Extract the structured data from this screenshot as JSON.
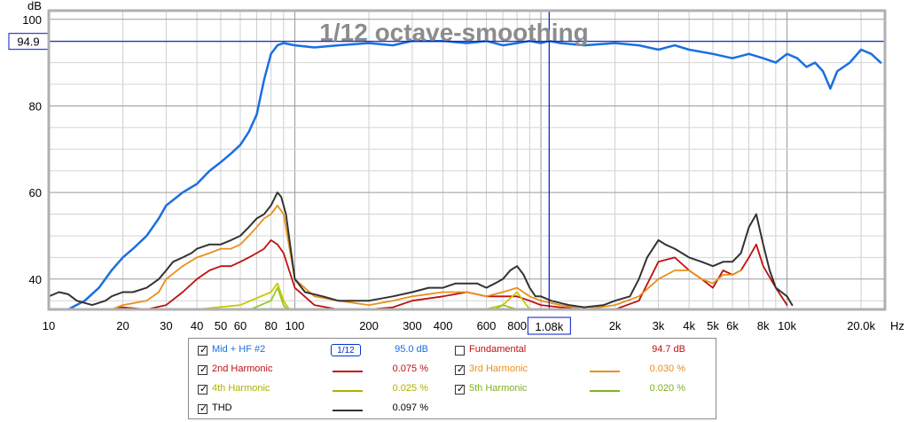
{
  "chart_data": {
    "type": "line",
    "title": "1/12 octave-smoothing",
    "ylabel": "dB",
    "xlabel": "Hz",
    "x_scale": "log",
    "xlim": [
      10,
      25000
    ],
    "ylim": [
      33,
      102
    ],
    "y_ticks": [
      40,
      60,
      80,
      100
    ],
    "x_ticks": [
      {
        "v": 10,
        "label": "10"
      },
      {
        "v": 20,
        "label": "20"
      },
      {
        "v": 30,
        "label": "30"
      },
      {
        "v": 40,
        "label": "40"
      },
      {
        "v": 50,
        "label": "50"
      },
      {
        "v": 60,
        "label": "60"
      },
      {
        "v": 80,
        "label": "80"
      },
      {
        "v": 100,
        "label": "100"
      },
      {
        "v": 200,
        "label": "200"
      },
      {
        "v": 300,
        "label": "300"
      },
      {
        "v": 400,
        "label": "400"
      },
      {
        "v": 600,
        "label": "600"
      },
      {
        "v": 800,
        "label": "800"
      },
      {
        "v": 2000,
        "label": "2k"
      },
      {
        "v": 3000,
        "label": "3k"
      },
      {
        "v": 4000,
        "label": "4k"
      },
      {
        "v": 5000,
        "label": "5k"
      },
      {
        "v": 6000,
        "label": "6k"
      },
      {
        "v": 8000,
        "label": "8k"
      },
      {
        "v": 10000,
        "label": "10k"
      },
      {
        "v": 20000,
        "label": "20.0k"
      }
    ],
    "cursor": {
      "x": 1080,
      "x_label": "1.08k",
      "y": 94.9,
      "y_label": "94.9"
    },
    "grid": true,
    "series": [
      {
        "name": "Mid + HF #2",
        "color": "#1a6fe0",
        "width": 2.5,
        "points": [
          [
            12,
            33
          ],
          [
            14,
            35
          ],
          [
            16,
            38
          ],
          [
            18,
            42
          ],
          [
            20,
            45
          ],
          [
            22,
            47
          ],
          [
            25,
            50
          ],
          [
            28,
            54
          ],
          [
            30,
            57
          ],
          [
            35,
            60
          ],
          [
            40,
            62
          ],
          [
            45,
            65
          ],
          [
            50,
            67
          ],
          [
            55,
            69
          ],
          [
            60,
            71
          ],
          [
            65,
            74
          ],
          [
            70,
            78
          ],
          [
            75,
            86
          ],
          [
            80,
            92
          ],
          [
            85,
            94
          ],
          [
            90,
            94.5
          ],
          [
            100,
            94
          ],
          [
            120,
            93.5
          ],
          [
            150,
            94
          ],
          [
            200,
            94.5
          ],
          [
            250,
            94
          ],
          [
            300,
            95
          ],
          [
            400,
            95
          ],
          [
            500,
            94.5
          ],
          [
            600,
            95
          ],
          [
            700,
            94
          ],
          [
            800,
            94.5
          ],
          [
            900,
            95
          ],
          [
            1000,
            94.5
          ],
          [
            1080,
            95
          ],
          [
            1200,
            94.5
          ],
          [
            1500,
            94
          ],
          [
            2000,
            94.5
          ],
          [
            2500,
            94
          ],
          [
            3000,
            93
          ],
          [
            3500,
            94
          ],
          [
            4000,
            93
          ],
          [
            5000,
            92
          ],
          [
            6000,
            91
          ],
          [
            7000,
            92
          ],
          [
            8000,
            91
          ],
          [
            9000,
            90
          ],
          [
            10000,
            92
          ],
          [
            11000,
            91
          ],
          [
            12000,
            89
          ],
          [
            13000,
            90
          ],
          [
            14000,
            88
          ],
          [
            15000,
            84
          ],
          [
            16000,
            88
          ],
          [
            18000,
            90
          ],
          [
            20000,
            93
          ],
          [
            22000,
            92
          ],
          [
            24000,
            90
          ]
        ]
      },
      {
        "name": "2nd Harmonic",
        "color": "#bf1010",
        "width": 1.8,
        "points": [
          [
            12,
            31
          ],
          [
            15,
            33
          ],
          [
            18,
            33
          ],
          [
            20,
            33.5
          ],
          [
            25,
            33
          ],
          [
            30,
            34
          ],
          [
            35,
            37
          ],
          [
            40,
            40
          ],
          [
            45,
            42
          ],
          [
            50,
            43
          ],
          [
            55,
            43
          ],
          [
            60,
            44
          ],
          [
            65,
            45
          ],
          [
            70,
            46
          ],
          [
            75,
            47
          ],
          [
            80,
            49
          ],
          [
            85,
            48
          ],
          [
            90,
            46
          ],
          [
            100,
            38
          ],
          [
            120,
            34
          ],
          [
            150,
            33
          ],
          [
            200,
            33
          ],
          [
            250,
            33.5
          ],
          [
            300,
            35
          ],
          [
            400,
            36
          ],
          [
            500,
            37
          ],
          [
            600,
            36
          ],
          [
            700,
            36
          ],
          [
            800,
            36
          ],
          [
            900,
            35
          ],
          [
            1000,
            34
          ],
          [
            1200,
            33.5
          ],
          [
            1500,
            33
          ],
          [
            2000,
            33
          ],
          [
            2500,
            35
          ],
          [
            3000,
            44
          ],
          [
            3500,
            45
          ],
          [
            4000,
            42
          ],
          [
            4500,
            40
          ],
          [
            5000,
            38
          ],
          [
            5500,
            42
          ],
          [
            6000,
            41
          ],
          [
            6500,
            42
          ],
          [
            7000,
            45
          ],
          [
            7500,
            48
          ],
          [
            8000,
            43
          ],
          [
            9000,
            38
          ],
          [
            10000,
            34
          ]
        ]
      },
      {
        "name": "3rd Harmonic",
        "color": "#e8901a",
        "width": 1.8,
        "points": [
          [
            12,
            31
          ],
          [
            15,
            32
          ],
          [
            18,
            33
          ],
          [
            20,
            34
          ],
          [
            25,
            35
          ],
          [
            28,
            37
          ],
          [
            30,
            40
          ],
          [
            35,
            43
          ],
          [
            40,
            45
          ],
          [
            45,
            46
          ],
          [
            50,
            47
          ],
          [
            55,
            47
          ],
          [
            60,
            48
          ],
          [
            65,
            50
          ],
          [
            70,
            52
          ],
          [
            75,
            54
          ],
          [
            80,
            55
          ],
          [
            85,
            57
          ],
          [
            90,
            55
          ],
          [
            100,
            40
          ],
          [
            120,
            36
          ],
          [
            150,
            35
          ],
          [
            200,
            34
          ],
          [
            250,
            35
          ],
          [
            300,
            36
          ],
          [
            400,
            37
          ],
          [
            500,
            37
          ],
          [
            600,
            36
          ],
          [
            700,
            37
          ],
          [
            800,
            38
          ],
          [
            900,
            36
          ],
          [
            1000,
            35
          ],
          [
            1200,
            34
          ],
          [
            1500,
            33
          ],
          [
            2000,
            34
          ],
          [
            2500,
            36
          ],
          [
            3000,
            40
          ],
          [
            3500,
            42
          ],
          [
            4000,
            42
          ],
          [
            4500,
            40
          ],
          [
            5000,
            39
          ],
          [
            5500,
            41
          ],
          [
            6000,
            41
          ],
          [
            6500,
            42
          ]
        ]
      },
      {
        "name": "4th Harmonic",
        "color": "#c8c800",
        "width": 1.8,
        "points": [
          [
            10,
            33
          ],
          [
            12,
            32
          ],
          [
            15,
            31
          ],
          [
            20,
            32
          ],
          [
            30,
            32
          ],
          [
            40,
            33
          ],
          [
            60,
            34
          ],
          [
            80,
            37
          ],
          [
            85,
            39
          ],
          [
            90,
            35
          ],
          [
            100,
            31
          ],
          [
            200,
            31
          ],
          [
            300,
            31
          ],
          [
            500,
            32
          ],
          [
            700,
            34
          ],
          [
            800,
            37
          ],
          [
            900,
            33
          ],
          [
            1000,
            31
          ],
          [
            2000,
            31
          ]
        ]
      },
      {
        "name": "5th Harmonic",
        "color": "#96c828",
        "width": 1.8,
        "points": [
          [
            10,
            32
          ],
          [
            12,
            31
          ],
          [
            20,
            31
          ],
          [
            40,
            32
          ],
          [
            60,
            32
          ],
          [
            80,
            35
          ],
          [
            85,
            38
          ],
          [
            90,
            34
          ],
          [
            100,
            31
          ],
          [
            300,
            31
          ],
          [
            600,
            32
          ],
          [
            700,
            34
          ],
          [
            800,
            33
          ],
          [
            900,
            31
          ],
          [
            2000,
            31
          ]
        ]
      },
      {
        "name": "THD",
        "color": "#333333",
        "width": 2,
        "points": [
          [
            10,
            36
          ],
          [
            11,
            37
          ],
          [
            12,
            36.5
          ],
          [
            13,
            35
          ],
          [
            15,
            34
          ],
          [
            17,
            35
          ],
          [
            18,
            36
          ],
          [
            20,
            37
          ],
          [
            22,
            37
          ],
          [
            25,
            38
          ],
          [
            28,
            40
          ],
          [
            30,
            42
          ],
          [
            32,
            44
          ],
          [
            35,
            45
          ],
          [
            38,
            46
          ],
          [
            40,
            47
          ],
          [
            45,
            48
          ],
          [
            50,
            48
          ],
          [
            55,
            49
          ],
          [
            60,
            50
          ],
          [
            65,
            52
          ],
          [
            70,
            54
          ],
          [
            75,
            55
          ],
          [
            80,
            57
          ],
          [
            85,
            60
          ],
          [
            88,
            59
          ],
          [
            92,
            55
          ],
          [
            100,
            40
          ],
          [
            110,
            37
          ],
          [
            130,
            36
          ],
          [
            150,
            35
          ],
          [
            200,
            35
          ],
          [
            250,
            36
          ],
          [
            300,
            37
          ],
          [
            350,
            38
          ],
          [
            400,
            38
          ],
          [
            450,
            39
          ],
          [
            500,
            39
          ],
          [
            550,
            39
          ],
          [
            600,
            38
          ],
          [
            650,
            39
          ],
          [
            700,
            40
          ],
          [
            750,
            42
          ],
          [
            800,
            43
          ],
          [
            850,
            41
          ],
          [
            900,
            38
          ],
          [
            950,
            36
          ],
          [
            1000,
            36
          ],
          [
            1100,
            35
          ],
          [
            1300,
            34
          ],
          [
            1500,
            33.5
          ],
          [
            1800,
            34
          ],
          [
            2000,
            35
          ],
          [
            2300,
            36
          ],
          [
            2500,
            40
          ],
          [
            2700,
            45
          ],
          [
            3000,
            49
          ],
          [
            3200,
            48
          ],
          [
            3500,
            47
          ],
          [
            4000,
            45
          ],
          [
            4500,
            44
          ],
          [
            5000,
            43
          ],
          [
            5500,
            44
          ],
          [
            6000,
            44
          ],
          [
            6500,
            46
          ],
          [
            7000,
            52
          ],
          [
            7500,
            55
          ],
          [
            8000,
            48
          ],
          [
            8500,
            42
          ],
          [
            9000,
            38
          ],
          [
            9500,
            37
          ],
          [
            10000,
            36
          ],
          [
            10500,
            34
          ]
        ]
      }
    ]
  },
  "legend": [
    [
      {
        "name": "Mid + HF #2",
        "checked": true,
        "value": "95.0 dB",
        "color": "#1a6fe0",
        "line": false,
        "smooth": "1/12"
      },
      {
        "name": "Fundamental",
        "checked": false,
        "value": "94.7 dB",
        "color": "#bf1010",
        "line": false,
        "smooth": ""
      }
    ],
    [
      {
        "name": "2nd Harmonic",
        "checked": true,
        "value": "0.075 %",
        "color": "#bf1010",
        "line": true,
        "smooth": ""
      },
      {
        "name": "3rd Harmonic",
        "checked": true,
        "value": "0.030 %",
        "color": "#e8901a",
        "line": true,
        "smooth": ""
      }
    ],
    [
      {
        "name": "4th Harmonic",
        "checked": true,
        "value": "0.025 %",
        "color": "#b0b000",
        "line": true,
        "smooth": ""
      },
      {
        "name": "5th Harmonic",
        "checked": true,
        "value": "0.020 %",
        "color": "#80b020",
        "line": true,
        "smooth": ""
      }
    ],
    [
      {
        "name": "THD",
        "checked": true,
        "value": "0.097 %",
        "color": "#333333",
        "line": true,
        "smooth": ""
      }
    ]
  ]
}
